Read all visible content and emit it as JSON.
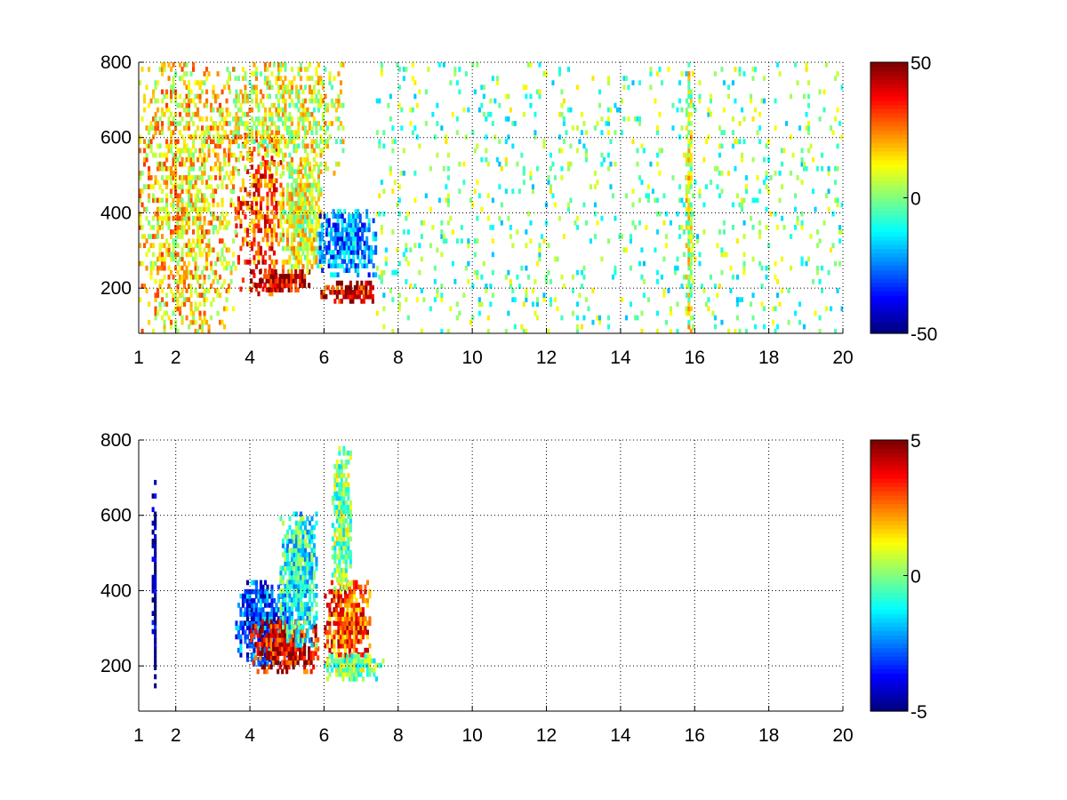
{
  "chart_data": [
    {
      "type": "heatmap",
      "title": "",
      "xlabel": "",
      "ylabel": "",
      "xlim": [
        1,
        20
      ],
      "ylim": [
        80,
        800
      ],
      "xticks": [
        1,
        2,
        4,
        6,
        8,
        10,
        12,
        14,
        16,
        18,
        20
      ],
      "yticks": [
        200,
        400,
        600,
        800
      ],
      "grid": true,
      "colormap": "jet",
      "clim": [
        -50,
        50
      ],
      "colorbar_ticks": [
        -50,
        0,
        50
      ],
      "background": "#ffffff",
      "features": [
        {
          "x": [
            3.6,
            4.9
          ],
          "y": [
            180,
            620
          ],
          "value": 30
        },
        {
          "x": [
            4.0,
            5.6
          ],
          "y": [
            190,
            240
          ],
          "value": 45
        },
        {
          "x": [
            4.8,
            5.9
          ],
          "y": [
            240,
            520
          ],
          "value": 10
        },
        {
          "x": [
            5.8,
            7.4
          ],
          "y": [
            230,
            400
          ],
          "value": -25
        },
        {
          "x": [
            5.9,
            7.3
          ],
          "y": [
            160,
            210
          ],
          "value": 40
        },
        {
          "x": [
            3.3,
            6.5
          ],
          "y": [
            500,
            800
          ],
          "value": 10
        },
        {
          "x": [
            1.0,
            3.6
          ],
          "y": [
            80,
            800
          ],
          "value": 15
        },
        {
          "x": [
            7.4,
            20.0
          ],
          "y": [
            80,
            800
          ],
          "value": -2
        },
        {
          "x": [
            15.75,
            15.9
          ],
          "y": [
            80,
            800
          ],
          "value": 8
        }
      ]
    },
    {
      "type": "heatmap",
      "title": "",
      "xlabel": "",
      "ylabel": "",
      "xlim": [
        1,
        20
      ],
      "ylim": [
        80,
        800
      ],
      "xticks": [
        1,
        2,
        4,
        6,
        8,
        10,
        12,
        14,
        16,
        18,
        20
      ],
      "yticks": [
        200,
        400,
        600,
        800
      ],
      "grid": true,
      "colormap": "jet",
      "clim": [
        -5,
        5
      ],
      "colorbar_ticks": [
        -5,
        0,
        5
      ],
      "background": "#ffffff",
      "features": [
        {
          "x": [
            3.6,
            5.0
          ],
          "y": [
            200,
            420
          ],
          "value": -3
        },
        {
          "x": [
            4.0,
            5.8
          ],
          "y": [
            180,
            320
          ],
          "value": 4
        },
        {
          "x": [
            4.8,
            5.8
          ],
          "y": [
            250,
            600
          ],
          "value": -1
        },
        {
          "x": [
            6.0,
            7.2
          ],
          "y": [
            200,
            420
          ],
          "value": 3
        },
        {
          "x": [
            6.0,
            7.6
          ],
          "y": [
            160,
            230
          ],
          "value": 0
        },
        {
          "x": [
            1.35,
            1.45
          ],
          "y": [
            130,
            700
          ],
          "value": -5
        },
        {
          "x": [
            6.2,
            6.7
          ],
          "y": [
            400,
            780
          ],
          "value": 0
        }
      ]
    }
  ]
}
